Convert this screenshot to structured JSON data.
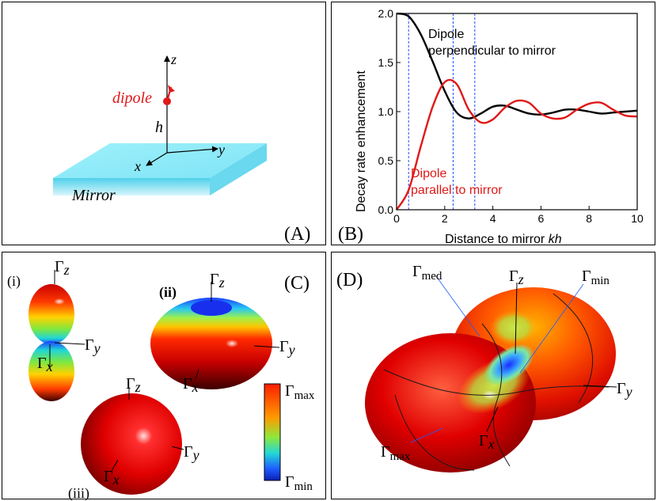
{
  "panel_a": {
    "label": "(A)",
    "dipole_label": "dipole",
    "height_label": "h",
    "mirror_label": "Mirror",
    "axis_x": "x",
    "axis_y": "y",
    "axis_z": "z",
    "colors": {
      "mirror_top": "#8de9f6",
      "mirror_side": "#5fd2ea",
      "dipole": "#e01818"
    }
  },
  "panel_b": {
    "label": "(B)",
    "annotation_perp_1": "Dipole",
    "annotation_perp_2": "perpendicular to mirror",
    "annotation_par_1": "Dipole",
    "annotation_par_2": "parallel to mirror",
    "xlabel_prefix": "Distance to mirror ",
    "xlabel_italic": "kh"
  },
  "chart_data": {
    "type": "line",
    "title": "",
    "xlabel": "Distance to mirror kh",
    "ylabel": "Decay rate enhancement",
    "xlim": [
      0,
      10
    ],
    "ylim": [
      0,
      2
    ],
    "xticks": [
      0,
      2,
      4,
      6,
      8,
      10
    ],
    "yticks": [
      "0.0",
      "0.5",
      "1.0",
      "1.5",
      "2.0"
    ],
    "reference_lines_x": [
      0.5,
      2.35,
      3.25
    ],
    "series": [
      {
        "name": "Dipole perpendicular to mirror",
        "color": "#000000",
        "x": [
          0,
          0.5,
          1,
          1.5,
          2,
          2.5,
          3,
          3.5,
          4,
          4.5,
          5,
          5.5,
          6,
          6.5,
          7,
          7.5,
          8,
          8.5,
          9,
          9.5,
          10
        ],
        "y": [
          2.0,
          1.97,
          1.79,
          1.51,
          1.21,
          0.99,
          0.93,
          0.98,
          1.05,
          1.06,
          1.02,
          0.98,
          0.97,
          0.99,
          1.02,
          1.02,
          1.0,
          0.98,
          0.99,
          1.0,
          1.01
        ]
      },
      {
        "name": "Dipole parallel to mirror",
        "color": "#e01818",
        "x": [
          0,
          0.5,
          1,
          1.5,
          2,
          2.5,
          3,
          3.5,
          4,
          4.5,
          5,
          5.5,
          6,
          6.5,
          7,
          7.5,
          8,
          8.5,
          9,
          9.5,
          10
        ],
        "y": [
          0.0,
          0.2,
          0.64,
          1.05,
          1.3,
          1.28,
          1.02,
          0.89,
          0.92,
          1.04,
          1.11,
          1.09,
          0.98,
          0.93,
          0.94,
          1.02,
          1.08,
          1.09,
          1.02,
          0.96,
          0.95
        ]
      }
    ]
  },
  "panel_c": {
    "label": "(C)",
    "sub_i": "(i)",
    "sub_ii": "(ii)",
    "sub_iii": "(iii)",
    "gamma": "Γ",
    "sub_x": "x",
    "sub_y": "y",
    "sub_z": "z",
    "sub_max": "max",
    "sub_min": "min"
  },
  "panel_d": {
    "label": "(D)",
    "gamma": "Γ",
    "sub_med": "med",
    "sub_z": "z",
    "sub_min": "min",
    "sub_y": "y",
    "sub_x": "x",
    "sub_max": "max"
  }
}
